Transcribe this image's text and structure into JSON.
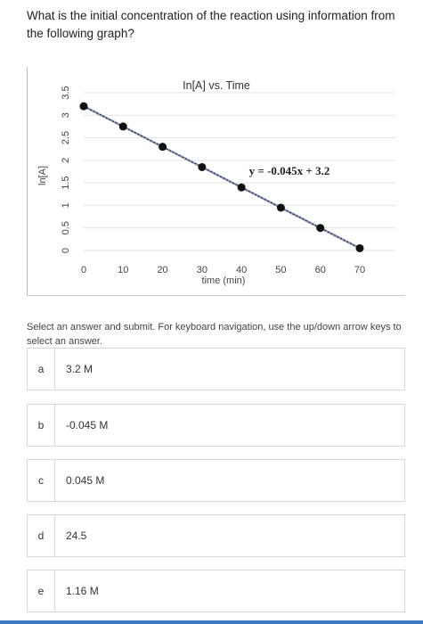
{
  "question": "What is the initial concentration of the reaction using information from the following graph?",
  "instructions": "Select an answer and submit. For keyboard navigation, use the up/down arrow keys to select an answer.",
  "options": [
    {
      "letter": "a",
      "text": "3.2 M"
    },
    {
      "letter": "b",
      "text": "-0.045 M"
    },
    {
      "letter": "c",
      "text": "0.045 M"
    },
    {
      "letter": "d",
      "text": "24.5"
    },
    {
      "letter": "e",
      "text": "1.16 M"
    }
  ],
  "chart_data": {
    "type": "scatter",
    "title": "In[A] vs. Time",
    "xlabel": "time (min)",
    "ylabel": "ln[A]",
    "annotation": "y = -0.045x + 3.2",
    "x_ticks": [
      "0",
      "10",
      "20",
      "30",
      "40",
      "50",
      "60",
      "70"
    ],
    "y_ticks": [
      "0",
      "0.5",
      "1",
      "1.5",
      "2",
      "2.5",
      "3",
      "3.5"
    ],
    "xlim": [
      0,
      70
    ],
    "ylim": [
      0,
      3.5
    ],
    "grid": true,
    "points": [
      {
        "x": 0,
        "y": 3.2
      },
      {
        "x": 10,
        "y": 2.75
      },
      {
        "x": 20,
        "y": 2.3
      },
      {
        "x": 30,
        "y": 1.85
      },
      {
        "x": 40,
        "y": 1.4
      },
      {
        "x": 50,
        "y": 0.95
      },
      {
        "x": 60,
        "y": 0.5
      },
      {
        "x": 70,
        "y": 0.05
      }
    ],
    "colors": {
      "line": "#8a9bc0",
      "point": "#111111",
      "grid": "#e3e3e3"
    }
  }
}
